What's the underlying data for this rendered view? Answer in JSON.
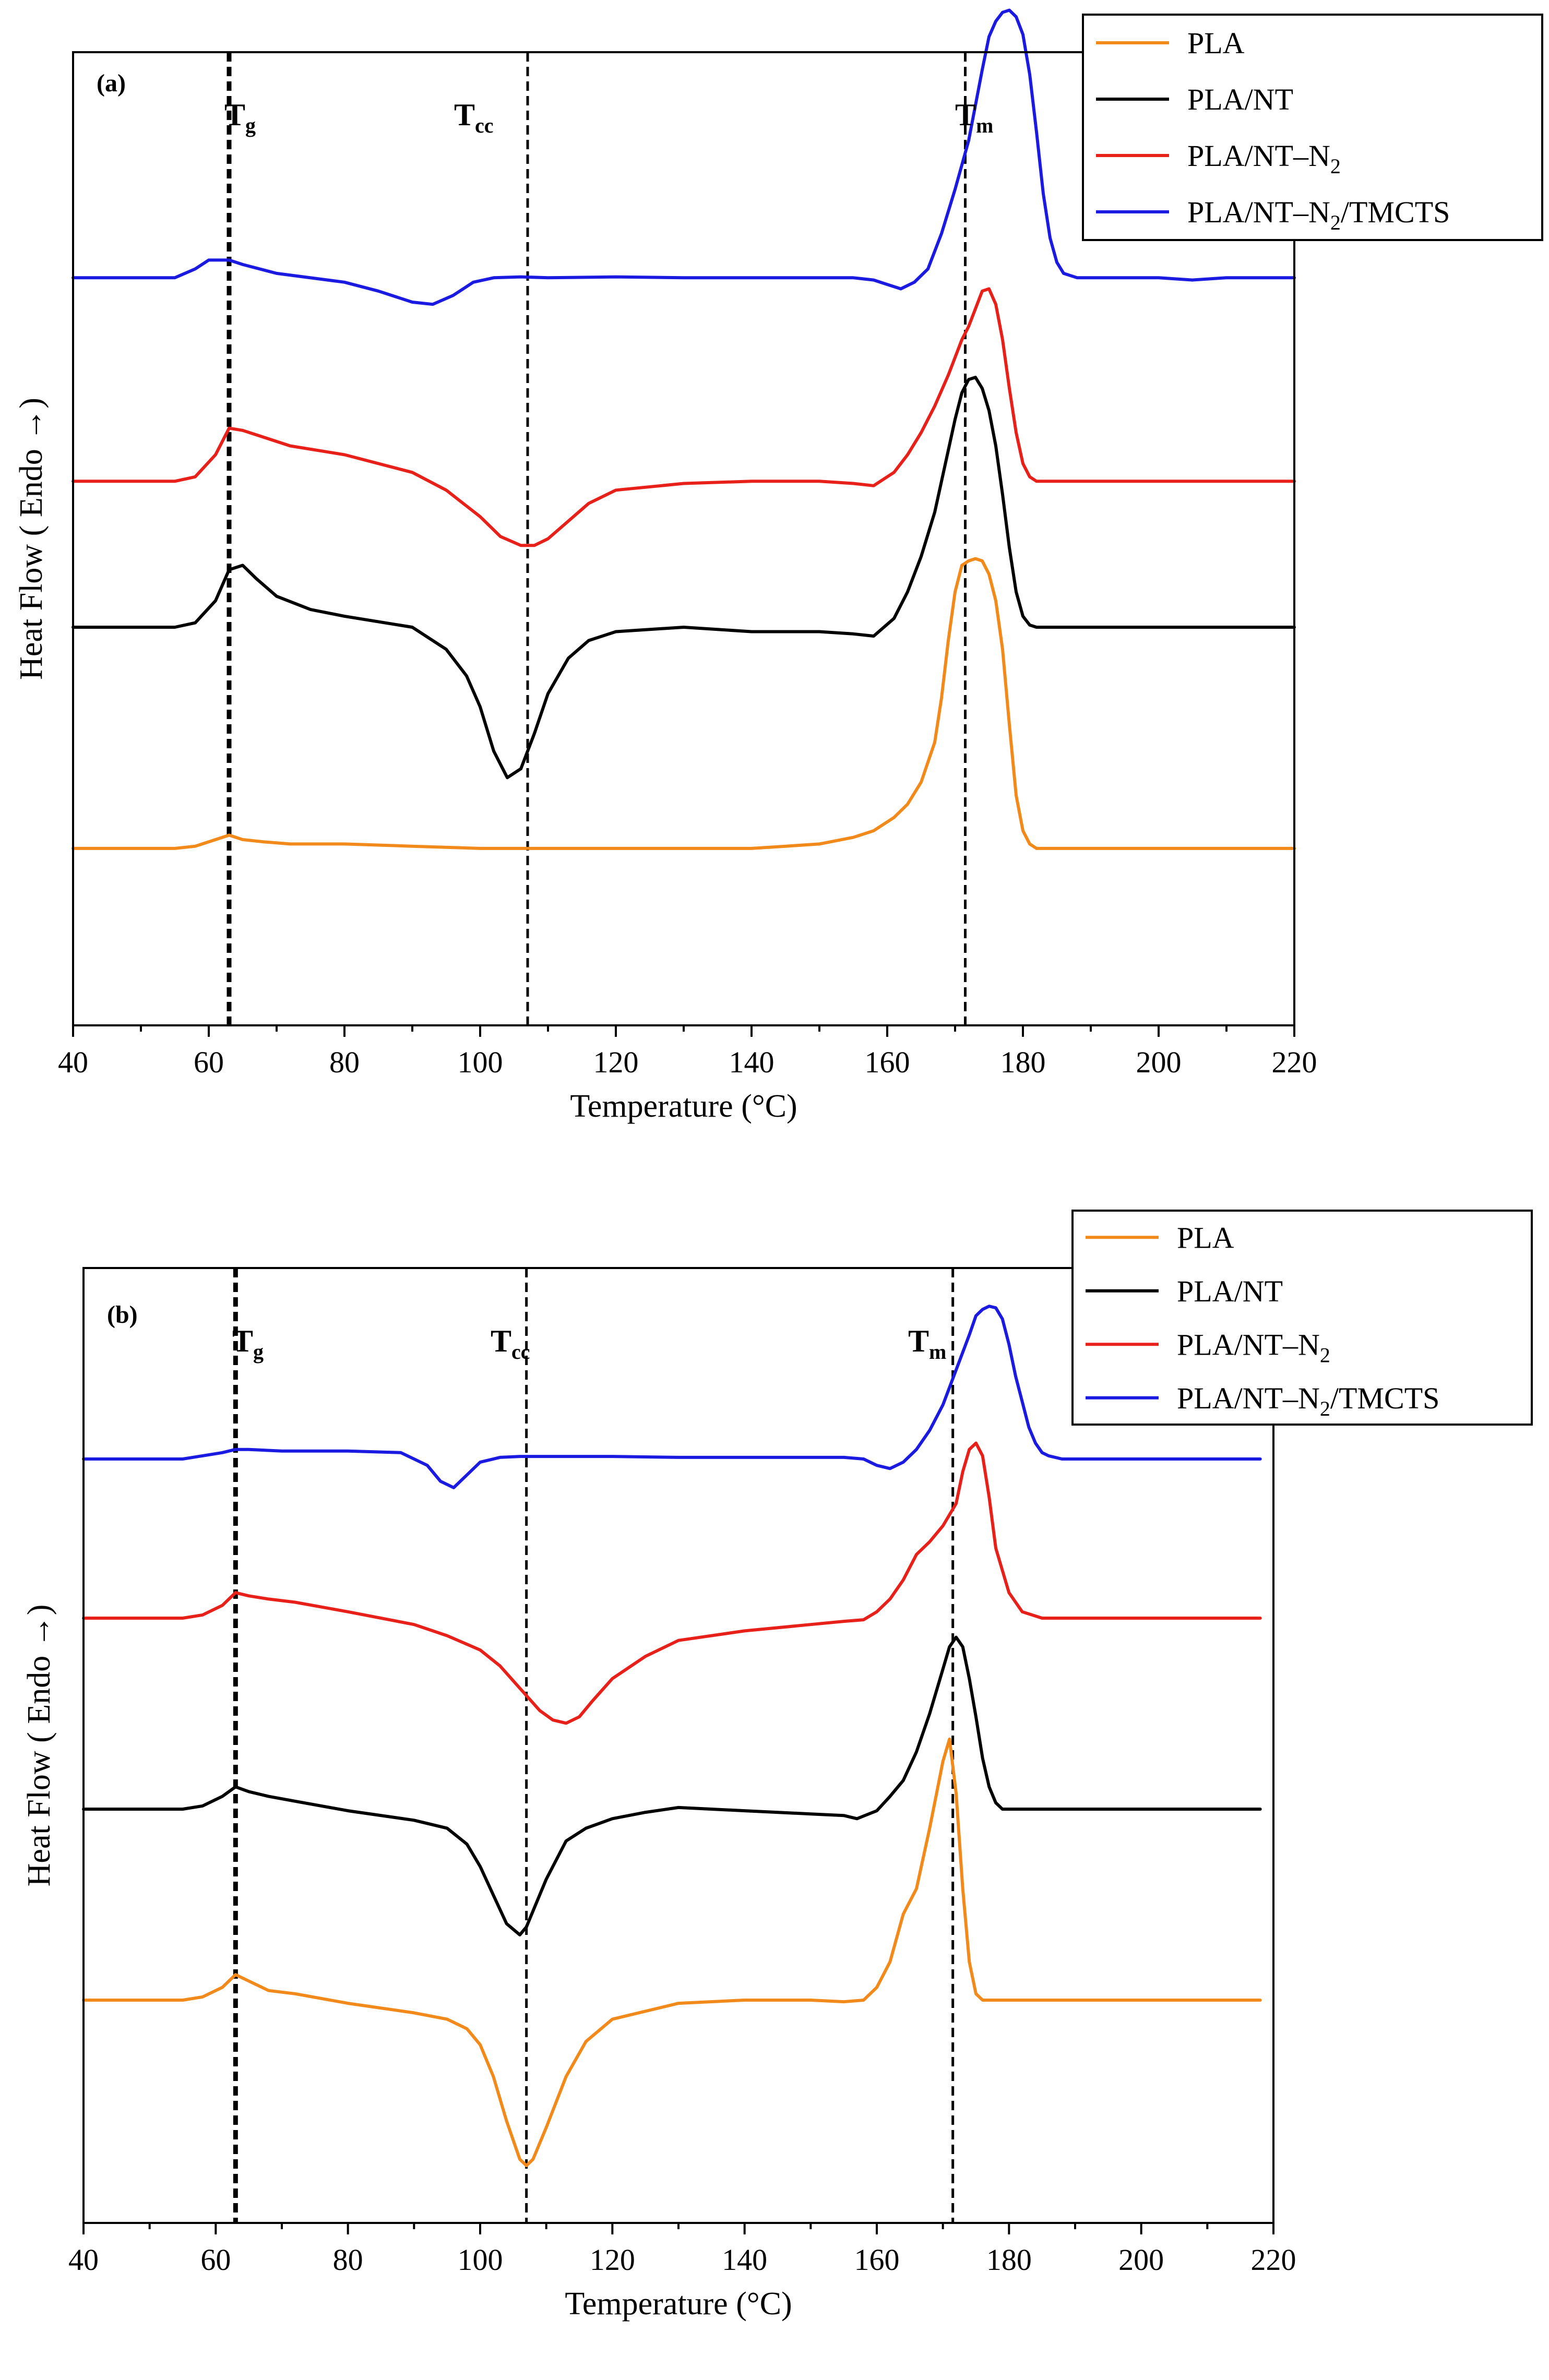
{
  "colors": {
    "PLA": "#f28a1b",
    "PLA/NT": "#000000",
    "PLA/NT-N2": "#e8201a",
    "PLA/NT-N2/TMCTS": "#1a1ae0"
  },
  "chart_data": [
    {
      "type": "line",
      "panel_label": "(a)",
      "xlabel": "Temperature (°C)",
      "ylabel": "Heat Flow ( Endo →)",
      "xlim": [
        40,
        220
      ],
      "ylim": [
        -9,
        13
      ],
      "x_ticks": [
        40,
        60,
        80,
        100,
        120,
        140,
        160,
        180,
        200,
        220
      ],
      "legend_position": "top-right",
      "legend": [
        {
          "key": "PLA",
          "main": "PLA",
          "sub": "",
          "tail": ""
        },
        {
          "key": "PLA/NT",
          "main": "PLA/NT",
          "sub": "",
          "tail": ""
        },
        {
          "key": "PLA/NT-N2",
          "main": "PLA/NT–N",
          "sub": "2",
          "tail": ""
        },
        {
          "key": "PLA/NT-N2/TMCTS",
          "main": "PLA/NT–N",
          "sub": "2",
          "tail": "/TMCTS"
        }
      ],
      "annotations": [
        {
          "main": "T",
          "sub": "g",
          "x": 63,
          "style": "bold"
        },
        {
          "main": "T",
          "sub": "cc",
          "x": 107,
          "style": "normal"
        },
        {
          "main": "T",
          "sub": "m",
          "x": 171.5,
          "style": "normal"
        }
      ],
      "series": [
        {
          "name": "PLA",
          "x": [
            40,
            55,
            58,
            61,
            63,
            65,
            68,
            72,
            80,
            90,
            100,
            110,
            120,
            130,
            140,
            145,
            150,
            155,
            158,
            161,
            163,
            165,
            167,
            168,
            169,
            170,
            171,
            172,
            173,
            174,
            175,
            176,
            177,
            178,
            179,
            180,
            181,
            182,
            185,
            190,
            200,
            210,
            220
          ],
          "y": [
            -5,
            -5,
            -4.95,
            -4.8,
            -4.7,
            -4.8,
            -4.85,
            -4.9,
            -4.9,
            -4.95,
            -5,
            -5,
            -5,
            -5,
            -5,
            -4.95,
            -4.9,
            -4.75,
            -4.6,
            -4.3,
            -4,
            -3.5,
            -2.6,
            -1.6,
            -0.3,
            0.8,
            1.4,
            1.5,
            1.55,
            1.5,
            1.2,
            0.6,
            -0.5,
            -2.2,
            -3.8,
            -4.6,
            -4.9,
            -5,
            -5,
            -5,
            -5,
            -5,
            -5
          ]
        },
        {
          "name": "PLA/NT",
          "x": [
            40,
            55,
            58,
            61,
            63,
            65,
            67,
            70,
            75,
            80,
            90,
            95,
            98,
            100,
            102,
            104,
            106,
            108,
            110,
            113,
            116,
            120,
            130,
            140,
            150,
            155,
            158,
            161,
            163,
            165,
            167,
            168,
            169,
            170,
            171,
            172,
            173,
            174,
            175,
            176,
            177,
            178,
            179,
            180,
            181,
            182,
            185,
            190,
            200,
            210,
            220
          ],
          "y": [
            0,
            0,
            0.1,
            0.6,
            1.3,
            1.4,
            1.1,
            0.7,
            0.4,
            0.25,
            0,
            -0.5,
            -1.1,
            -1.8,
            -2.8,
            -3.4,
            -3.2,
            -2.4,
            -1.5,
            -0.7,
            -0.3,
            -0.1,
            0,
            -0.1,
            -0.1,
            -0.15,
            -0.2,
            0.2,
            0.8,
            1.6,
            2.6,
            3.3,
            4,
            4.7,
            5.3,
            5.6,
            5.65,
            5.4,
            4.9,
            4.1,
            3,
            1.8,
            0.8,
            0.25,
            0.05,
            0,
            0,
            0,
            0,
            0,
            0
          ]
        },
        {
          "name": "PLA/NT-N2",
          "x": [
            40,
            55,
            58,
            61,
            63,
            65,
            68,
            72,
            80,
            90,
            95,
            100,
            103,
            106,
            108,
            110,
            113,
            116,
            120,
            130,
            140,
            150,
            155,
            158,
            161,
            163,
            165,
            167,
            169,
            170,
            171,
            172,
            173,
            174,
            175,
            176,
            177,
            178,
            179,
            180,
            181,
            182,
            185,
            190,
            200,
            210,
            220
          ],
          "y": [
            3.3,
            3.3,
            3.4,
            3.9,
            4.5,
            4.45,
            4.3,
            4.1,
            3.9,
            3.5,
            3.1,
            2.5,
            2.05,
            1.85,
            1.85,
            2,
            2.4,
            2.8,
            3.1,
            3.25,
            3.3,
            3.3,
            3.25,
            3.2,
            3.5,
            3.9,
            4.4,
            5,
            5.7,
            6.1,
            6.5,
            6.8,
            7.2,
            7.6,
            7.65,
            7.3,
            6.5,
            5.4,
            4.4,
            3.7,
            3.4,
            3.3,
            3.3,
            3.3,
            3.3,
            3.3,
            3.3
          ]
        },
        {
          "name": "PLA/NT-N2/TMCTS",
          "x": [
            40,
            55,
            58,
            60,
            63,
            65,
            70,
            80,
            85,
            90,
            93,
            96,
            99,
            102,
            106,
            110,
            120,
            130,
            140,
            150,
            155,
            158,
            160,
            162,
            164,
            166,
            168,
            170,
            172,
            174,
            175,
            176,
            177,
            178,
            179,
            180,
            181,
            182,
            183,
            184,
            185,
            186,
            188,
            190,
            195,
            200,
            205,
            210,
            215,
            220
          ],
          "y": [
            7.9,
            7.9,
            8.1,
            8.3,
            8.3,
            8.2,
            8,
            7.8,
            7.6,
            7.35,
            7.3,
            7.5,
            7.8,
            7.9,
            7.92,
            7.9,
            7.92,
            7.9,
            7.9,
            7.9,
            7.9,
            7.85,
            7.75,
            7.65,
            7.8,
            8.1,
            8.9,
            9.9,
            11,
            12.6,
            13.35,
            13.7,
            13.9,
            13.95,
            13.8,
            13.4,
            12.5,
            11.2,
            9.8,
            8.8,
            8.25,
            8,
            7.9,
            7.9,
            7.9,
            7.9,
            7.85,
            7.9,
            7.9,
            7.9
          ]
        }
      ]
    },
    {
      "type": "line",
      "panel_label": "(b)",
      "xlabel": "Temperature (°C)",
      "ylabel": "Heat Flow ( Endo →)",
      "xlim": [
        40,
        220
      ],
      "ylim": [
        -18,
        12
      ],
      "x_ticks": [
        40,
        60,
        80,
        100,
        120,
        140,
        160,
        180,
        200,
        220
      ],
      "legend_position": "top-right",
      "legend": [
        {
          "key": "PLA",
          "main": "PLA",
          "sub": "",
          "tail": ""
        },
        {
          "key": "PLA/NT",
          "main": "PLA/NT",
          "sub": "",
          "tail": ""
        },
        {
          "key": "PLA/NT-N2",
          "main": "PLA/NT–N",
          "sub": "2",
          "tail": ""
        },
        {
          "key": "PLA/NT-N2/TMCTS",
          "main": "PLA/NT–N",
          "sub": "2",
          "tail": "/TMCTS"
        }
      ],
      "annotations": [
        {
          "main": "T",
          "sub": "g",
          "x": 63,
          "style": "bold"
        },
        {
          "main": "T",
          "sub": "cc",
          "x": 107,
          "style": "normal"
        },
        {
          "main": "T",
          "sub": "m",
          "x": 171.5,
          "style": "normal"
        }
      ],
      "series": [
        {
          "name": "PLA",
          "x": [
            40,
            55,
            58,
            61,
            63,
            65,
            68,
            72,
            80,
            90,
            95,
            98,
            100,
            102,
            104,
            106,
            107,
            108,
            110,
            113,
            116,
            120,
            130,
            140,
            150,
            155,
            158,
            160,
            162,
            164,
            166,
            168,
            170,
            171,
            172,
            173,
            174,
            175,
            176,
            178,
            180,
            190,
            200,
            210,
            218
          ],
          "y": [
            -11,
            -11,
            -10.9,
            -10.6,
            -10.2,
            -10.4,
            -10.7,
            -10.8,
            -11.1,
            -11.4,
            -11.6,
            -11.9,
            -12.4,
            -13.4,
            -14.8,
            -16,
            -16.2,
            -16,
            -15,
            -13.4,
            -12.3,
            -11.6,
            -11.1,
            -11,
            -11,
            -11.05,
            -11,
            -10.6,
            -9.8,
            -8.3,
            -7.5,
            -5.6,
            -3.5,
            -2.8,
            -4.5,
            -7.5,
            -9.8,
            -10.8,
            -11,
            -11,
            -11,
            -11,
            -11,
            -11,
            -11
          ]
        },
        {
          "name": "PLA/NT",
          "x": [
            40,
            55,
            58,
            61,
            63,
            65,
            68,
            72,
            80,
            90,
            95,
            98,
            100,
            102,
            104,
            106,
            107,
            108,
            110,
            113,
            116,
            120,
            125,
            130,
            135,
            140,
            150,
            155,
            157,
            160,
            162,
            164,
            166,
            168,
            170,
            171,
            172,
            173,
            174,
            175,
            176,
            177,
            178,
            179,
            180,
            182,
            185,
            190,
            200,
            210,
            218
          ],
          "y": [
            -5,
            -5,
            -4.9,
            -4.6,
            -4.3,
            -4.45,
            -4.6,
            -4.75,
            -5.05,
            -5.35,
            -5.6,
            -6.1,
            -6.8,
            -7.7,
            -8.6,
            -8.95,
            -8.7,
            -8.2,
            -7.2,
            -6,
            -5.6,
            -5.3,
            -5.1,
            -4.95,
            -5,
            -5.05,
            -5.15,
            -5.2,
            -5.3,
            -5.05,
            -4.6,
            -4.1,
            -3.2,
            -2,
            -0.6,
            0.1,
            0.4,
            0.1,
            -0.9,
            -2.1,
            -3.4,
            -4.3,
            -4.8,
            -5,
            -5,
            -5,
            -5,
            -5,
            -5,
            -5,
            -5
          ]
        },
        {
          "name": "PLA/NT-N2",
          "x": [
            40,
            55,
            58,
            61,
            63,
            65,
            68,
            72,
            80,
            90,
            95,
            100,
            103,
            106,
            109,
            111,
            113,
            115,
            117,
            120,
            125,
            130,
            140,
            150,
            155,
            158,
            160,
            162,
            164,
            166,
            168,
            170,
            172,
            173,
            174,
            175,
            176,
            177,
            178,
            180,
            182,
            185,
            190,
            200,
            210,
            218
          ],
          "y": [
            1,
            1,
            1.1,
            1.4,
            1.8,
            1.7,
            1.6,
            1.5,
            1.2,
            0.8,
            0.45,
            0,
            -0.5,
            -1.2,
            -1.9,
            -2.2,
            -2.3,
            -2.1,
            -1.6,
            -0.9,
            -0.2,
            0.3,
            0.6,
            0.8,
            0.9,
            0.95,
            1.2,
            1.6,
            2.2,
            3,
            3.4,
            3.9,
            4.6,
            5.6,
            6.3,
            6.5,
            6.1,
            4.8,
            3.2,
            1.8,
            1.2,
            1,
            1,
            1,
            1,
            1
          ]
        },
        {
          "name": "PLA/NT-N2/TMCTS",
          "x": [
            40,
            55,
            58,
            61,
            63,
            65,
            70,
            80,
            88,
            92,
            94,
            96,
            98,
            100,
            103,
            106,
            110,
            120,
            130,
            140,
            150,
            155,
            158,
            160,
            162,
            164,
            166,
            168,
            170,
            172,
            174,
            175,
            176,
            177,
            178,
            179,
            180,
            181,
            182,
            183,
            184,
            185,
            186,
            188,
            190,
            195,
            200,
            210,
            218
          ],
          "y": [
            6,
            6,
            6.1,
            6.2,
            6.3,
            6.3,
            6.25,
            6.25,
            6.2,
            5.8,
            5.3,
            5.1,
            5.5,
            5.9,
            6.05,
            6.08,
            6.08,
            6.08,
            6.05,
            6.05,
            6.05,
            6.05,
            6,
            5.8,
            5.7,
            5.9,
            6.3,
            6.9,
            7.7,
            8.8,
            9.9,
            10.5,
            10.7,
            10.8,
            10.75,
            10.4,
            9.6,
            8.6,
            7.8,
            7,
            6.5,
            6.2,
            6.1,
            6,
            6,
            6,
            6,
            6,
            6
          ]
        }
      ]
    }
  ]
}
